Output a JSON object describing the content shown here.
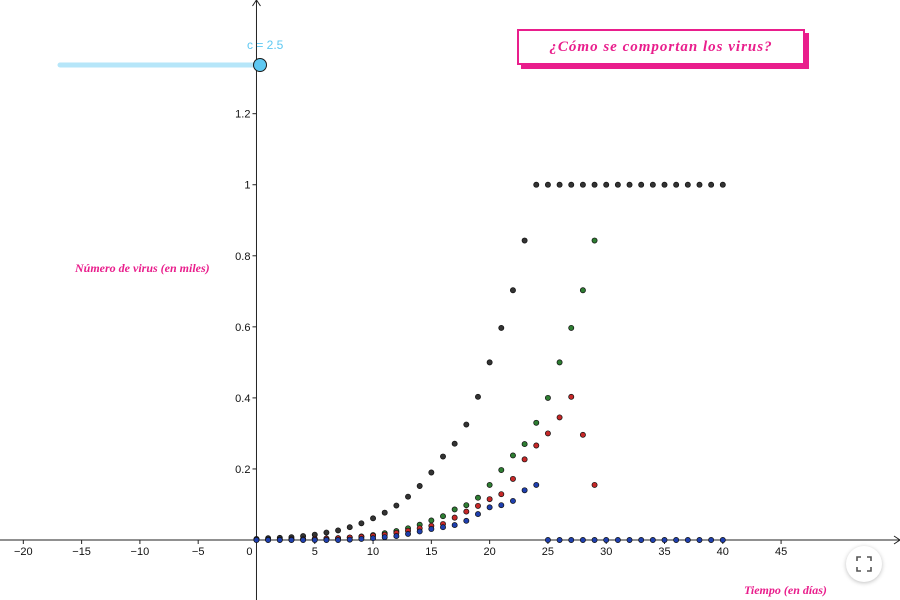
{
  "title": "¿Cómo se comportan los virus?",
  "slider": {
    "name": "c",
    "value": 2.5,
    "label": "c = 2.5",
    "color": "#5ec8f2",
    "min": -18,
    "max": 2.5
  },
  "fullscreen_icon": "fullscreen-icon",
  "chart_data": {
    "type": "scatter",
    "ylabel": "Número de virus  (en miles)",
    "xlabel": "Tiempo (en días)",
    "xlim": [
      -22,
      55.2
    ],
    "ylim": [
      0,
      1.52
    ],
    "x_ticks": [
      -20,
      -15,
      -10,
      -5,
      0,
      5,
      10,
      15,
      20,
      25,
      30,
      35,
      40,
      45
    ],
    "y_ticks": [
      0.2,
      0.4,
      0.6,
      0.8,
      1,
      1.2
    ],
    "grid": false,
    "series": [
      {
        "color": "#333333",
        "points": [
          [
            0,
            0.003
          ],
          [
            1,
            0.005
          ],
          [
            2,
            0.006
          ],
          [
            3,
            0.008
          ],
          [
            4,
            0.011
          ],
          [
            5,
            0.015
          ],
          [
            6,
            0.021
          ],
          [
            7,
            0.027
          ],
          [
            8,
            0.036
          ],
          [
            9,
            0.047
          ],
          [
            10,
            0.061
          ],
          [
            11,
            0.077
          ],
          [
            12,
            0.097
          ],
          [
            13,
            0.122
          ],
          [
            14,
            0.152
          ],
          [
            15,
            0.19
          ],
          [
            16,
            0.235
          ],
          [
            17,
            0.271
          ],
          [
            18,
            0.325
          ],
          [
            19,
            0.403
          ],
          [
            20,
            0.5
          ],
          [
            21,
            0.597
          ],
          [
            22,
            0.703
          ],
          [
            23,
            0.843
          ],
          [
            24,
            1
          ],
          [
            25,
            1
          ],
          [
            26,
            1
          ],
          [
            27,
            1
          ],
          [
            28,
            1
          ],
          [
            29,
            1
          ],
          [
            30,
            1
          ],
          [
            31,
            1
          ],
          [
            32,
            1
          ],
          [
            33,
            1
          ],
          [
            34,
            1
          ],
          [
            35,
            1
          ],
          [
            36,
            1
          ],
          [
            37,
            1
          ],
          [
            38,
            1
          ],
          [
            39,
            1
          ],
          [
            40,
            1
          ]
        ]
      },
      {
        "color": "#2e7d32",
        "points": [
          [
            0,
            0.001
          ],
          [
            1,
            0.001
          ],
          [
            2,
            0.001
          ],
          [
            3,
            0.001
          ],
          [
            4,
            0.002
          ],
          [
            5,
            0.003
          ],
          [
            6,
            0.004
          ],
          [
            7,
            0.005
          ],
          [
            8,
            0.007
          ],
          [
            9,
            0.01
          ],
          [
            10,
            0.014
          ],
          [
            11,
            0.019
          ],
          [
            12,
            0.025
          ],
          [
            13,
            0.033
          ],
          [
            14,
            0.043
          ],
          [
            15,
            0.055
          ],
          [
            16,
            0.067
          ],
          [
            17,
            0.086
          ],
          [
            18,
            0.098
          ],
          [
            19,
            0.119
          ],
          [
            20,
            0.155
          ],
          [
            21,
            0.197
          ],
          [
            22,
            0.238
          ],
          [
            23,
            0.27
          ],
          [
            24,
            0.33
          ],
          [
            25,
            0.4
          ],
          [
            26,
            0.5
          ],
          [
            27,
            0.597
          ],
          [
            28,
            0.703
          ],
          [
            29,
            0.843
          ]
        ]
      },
      {
        "color": "#c62828",
        "points": [
          [
            0,
            0.001
          ],
          [
            1,
            0.001
          ],
          [
            2,
            0.001
          ],
          [
            3,
            0.002
          ],
          [
            4,
            0.002
          ],
          [
            5,
            0.003
          ],
          [
            6,
            0.004
          ],
          [
            7,
            0.005
          ],
          [
            8,
            0.007
          ],
          [
            9,
            0.009
          ],
          [
            10,
            0.012
          ],
          [
            11,
            0.015
          ],
          [
            12,
            0.02
          ],
          [
            13,
            0.026
          ],
          [
            14,
            0.033
          ],
          [
            15,
            0.04
          ],
          [
            16,
            0.045
          ],
          [
            17,
            0.063
          ],
          [
            18,
            0.08
          ],
          [
            19,
            0.096
          ],
          [
            20,
            0.115
          ],
          [
            21,
            0.129
          ],
          [
            22,
            0.172
          ],
          [
            23,
            0.227
          ],
          [
            24,
            0.266
          ],
          [
            25,
            0.3
          ],
          [
            26,
            0.345
          ],
          [
            27,
            0.403
          ],
          [
            28,
            0.296
          ],
          [
            29,
            0.155
          ]
        ]
      },
      {
        "color": "#1e3fae",
        "points": [
          [
            0,
            0
          ],
          [
            1,
            0
          ],
          [
            2,
            0
          ],
          [
            3,
            0
          ],
          [
            4,
            0
          ],
          [
            5,
            0
          ],
          [
            6,
            0
          ],
          [
            7,
            0
          ],
          [
            8,
            0.001
          ],
          [
            9,
            0.003
          ],
          [
            10,
            0.005
          ],
          [
            11,
            0.008
          ],
          [
            12,
            0.011
          ],
          [
            13,
            0.017
          ],
          [
            14,
            0.024
          ],
          [
            15,
            0.031
          ],
          [
            16,
            0.036
          ],
          [
            17,
            0.042
          ],
          [
            18,
            0.054
          ],
          [
            19,
            0.073
          ],
          [
            20,
            0.092
          ],
          [
            21,
            0.098
          ],
          [
            22,
            0.11
          ],
          [
            23,
            0.14
          ],
          [
            24,
            0.155
          ],
          [
            25,
            0
          ],
          [
            26,
            0
          ],
          [
            27,
            0
          ],
          [
            28,
            0
          ],
          [
            29,
            0
          ],
          [
            30,
            0
          ],
          [
            31,
            0
          ],
          [
            32,
            0
          ],
          [
            33,
            0
          ],
          [
            34,
            0
          ],
          [
            35,
            0
          ],
          [
            36,
            0
          ],
          [
            37,
            0
          ],
          [
            38,
            0
          ],
          [
            39,
            0
          ],
          [
            40,
            0
          ]
        ]
      }
    ]
  }
}
